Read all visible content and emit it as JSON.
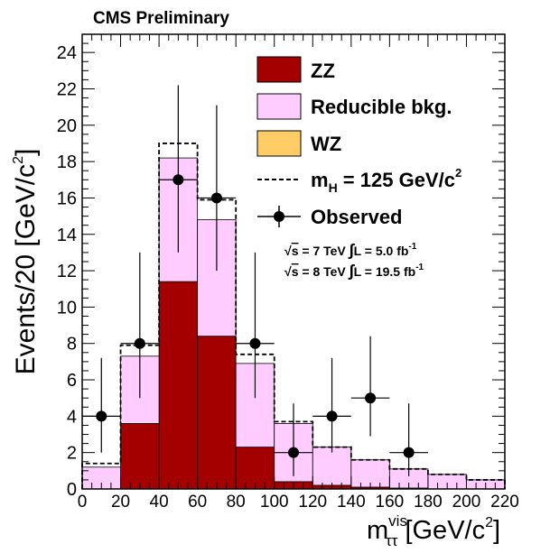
{
  "chart_data": {
    "type": "bar",
    "title": "CMS Preliminary",
    "ylabel_main": "Events/20 [GeV/c",
    "ylabel_sup": "2",
    "ylabel_close": "]",
    "xlabel_main": "m",
    "xlabel_sup": "vis",
    "xlabel_sub": "ττ",
    "xlabel_unit": " [GeV/c",
    "xlabel_unit_sup": "2",
    "xlabel_close": "]",
    "xlim": [
      0,
      220
    ],
    "ylim": [
      0,
      25
    ],
    "bin_width": 20,
    "x_ticks": [
      "0",
      "20",
      "40",
      "60",
      "80",
      "100",
      "120",
      "140",
      "160",
      "180",
      "200",
      "220"
    ],
    "y_ticks": [
      "0",
      "2",
      "4",
      "6",
      "8",
      "10",
      "12",
      "14",
      "16",
      "18",
      "20",
      "22",
      "24"
    ],
    "bins": [
      0,
      20,
      40,
      60,
      80,
      100,
      120,
      140,
      160,
      180,
      200
    ],
    "series": [
      {
        "name": "ZZ",
        "kind": "stack",
        "color": "#a50000",
        "values": [
          0.0,
          3.6,
          11.4,
          8.4,
          2.3,
          0.4,
          0.2,
          0.1,
          0.05,
          0.0,
          0.0
        ]
      },
      {
        "name": "Reducible bkg.",
        "kind": "stack",
        "color": "#ffccff",
        "values": [
          1.2,
          3.7,
          6.8,
          6.4,
          4.6,
          3.2,
          2.1,
          1.5,
          1.05,
          0.8,
          0.5
        ]
      },
      {
        "name": "WZ",
        "kind": "stack",
        "color": "#ffcc66",
        "values": [
          0.0,
          0.0,
          0.0,
          0.0,
          0.0,
          0.0,
          0.0,
          0.0,
          0.0,
          0.0,
          0.0
        ]
      },
      {
        "name": "m",
        "name_sub": "H",
        "name_rest": " = 125 GeV/c",
        "name_sup": "2",
        "kind": "signal",
        "color": "#000000",
        "values": [
          1.4,
          7.9,
          19.0,
          15.9,
          7.4,
          3.7,
          2.3,
          1.6,
          1.1,
          0.8,
          0.5
        ]
      },
      {
        "name": "Observed",
        "kind": "points",
        "x": [
          10,
          30,
          50,
          70,
          90,
          110,
          130,
          150,
          170
        ],
        "y": [
          4,
          8,
          17,
          16,
          8,
          2,
          4,
          5,
          2
        ],
        "y_low": [
          2.0,
          5.0,
          13.0,
          12.0,
          5.0,
          0.7,
          2.0,
          2.9,
          0.7
        ],
        "y_high": [
          7.2,
          13.0,
          22.2,
          21.1,
          13.0,
          4.7,
          7.2,
          8.4,
          4.7
        ]
      }
    ],
    "lumi": [
      {
        "sqrt": "s",
        "energy": " = 7 TeV ",
        "integral": "∫",
        "text": "L = 5.0 fb",
        "sup": "-1"
      },
      {
        "sqrt": "s",
        "energy": " = 8 TeV ",
        "integral": "∫",
        "text": "L = 19.5 fb",
        "sup": "-1"
      }
    ],
    "legend_position": "top-right",
    "grid": false
  }
}
